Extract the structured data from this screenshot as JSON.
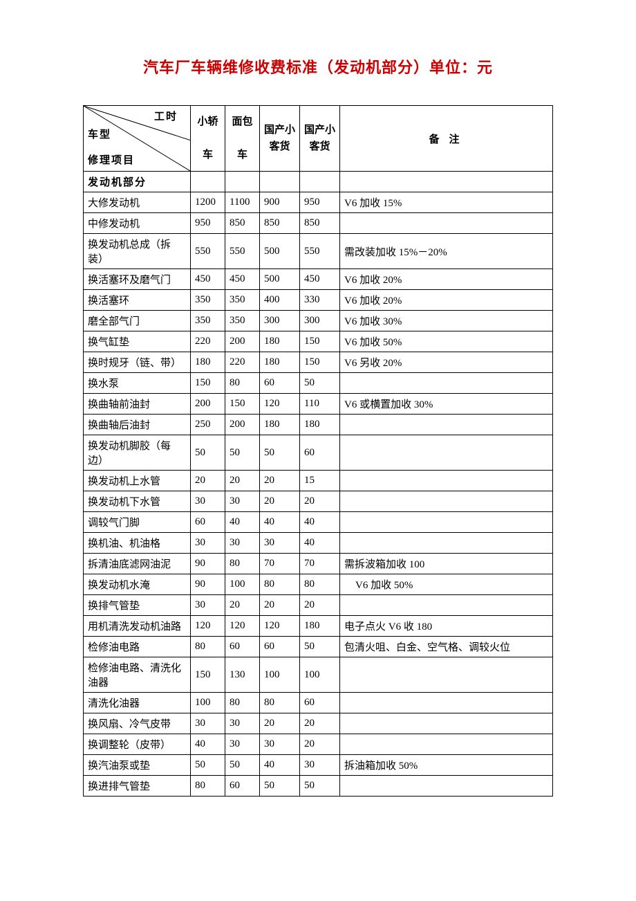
{
  "title_text": "汽车厂车辆维修收费标准（发动机部分）单位：元",
  "title_color": "#cc0000",
  "header": {
    "diag": {
      "工时": "工时",
      "车型": "车型",
      "修理项目": "修理项目"
    },
    "cols": [
      {
        "l1": "小轿",
        "l2": "车"
      },
      {
        "l1": "面包",
        "l2": "车"
      },
      {
        "l1": "国产小",
        "l2": "客货"
      },
      {
        "l1": "国产小",
        "l2": "客货"
      }
    ],
    "remark": "备注"
  },
  "section": "发动机部分",
  "rows": [
    {
      "item": "大修发动机",
      "v": [
        "1200",
        "1100",
        "900",
        "950"
      ],
      "r": "V6 加收 15%"
    },
    {
      "item": "中修发动机",
      "v": [
        "950",
        "850",
        "850",
        "850"
      ],
      "r": ""
    },
    {
      "item": "换发动机总成（拆装）",
      "v": [
        "550",
        "550",
        "500",
        "550"
      ],
      "r": "需改装加收 15%－20%"
    },
    {
      "item": "换活塞环及磨气门",
      "v": [
        "450",
        "450",
        "500",
        "450"
      ],
      "r": "V6 加收 20%"
    },
    {
      "item": "换活塞环",
      "v": [
        "350",
        "350",
        "400",
        "330"
      ],
      "r": "V6 加收 20%"
    },
    {
      "item": "磨全部气门",
      "v": [
        "350",
        "350",
        "300",
        "300"
      ],
      "r": "V6 加收 30%"
    },
    {
      "item": "换气缸垫",
      "v": [
        "220",
        "200",
        "180",
        "150"
      ],
      "r": "V6 加收 50%"
    },
    {
      "item": "换时规牙（链、带）",
      "v": [
        "180",
        "220",
        "180",
        "150"
      ],
      "r": "V6 另收 20%"
    },
    {
      "item": "换水泵",
      "v": [
        "150",
        "80",
        "60",
        "50"
      ],
      "r": ""
    },
    {
      "item": "换曲轴前油封",
      "v": [
        "200",
        "150",
        "120",
        "110"
      ],
      "r": "V6 或横置加收 30%"
    },
    {
      "item": "换曲轴后油封",
      "v": [
        "250",
        "200",
        "180",
        "180"
      ],
      "r": ""
    },
    {
      "item": "换发动机脚胶（每边）",
      "v": [
        "50",
        "50",
        "50",
        "60"
      ],
      "r": ""
    },
    {
      "item": "换发动机上水管",
      "v": [
        "20",
        "20",
        "20",
        "15"
      ],
      "r": ""
    },
    {
      "item": "换发动机下水管",
      "v": [
        "30",
        "30",
        "20",
        "20"
      ],
      "r": ""
    },
    {
      "item": "调较气门脚",
      "v": [
        "60",
        "40",
        "40",
        "40"
      ],
      "r": ""
    },
    {
      "item": "换机油、机油格",
      "v": [
        "30",
        "30",
        "30",
        "40"
      ],
      "r": ""
    },
    {
      "item": "拆清油底滤网油泥",
      "v": [
        "90",
        "80",
        "70",
        "70"
      ],
      "r": "需拆波箱加收 100"
    },
    {
      "item": "换发动机水淹",
      "v": [
        "90",
        "100",
        "80",
        "80"
      ],
      "r": "V6 加收 50%",
      "indent": true
    },
    {
      "item": "换排气管垫",
      "v": [
        "30",
        "20",
        "20",
        "20"
      ],
      "r": ""
    },
    {
      "item": "用机清洗发动机油路",
      "v": [
        "120",
        "120",
        "120",
        "180"
      ],
      "r": "电子点火 V6 收 180"
    },
    {
      "item": "检修油电路",
      "v": [
        "80",
        "60",
        "60",
        "50"
      ],
      "r": "包清火咀、白金、空气格、调较火位"
    },
    {
      "item": "检修油电路、清洗化油器",
      "v": [
        "150",
        "130",
        "100",
        "100"
      ],
      "r": ""
    },
    {
      "item": "清洗化油器",
      "v": [
        "100",
        "80",
        "80",
        "60"
      ],
      "r": ""
    },
    {
      "item": "换风扇、冷气皮带",
      "v": [
        "30",
        "30",
        "20",
        "20"
      ],
      "r": ""
    },
    {
      "item": "换调整轮（皮带）",
      "v": [
        "40",
        "30",
        "30",
        "20"
      ],
      "r": ""
    },
    {
      "item": "换汽油泵或垫",
      "v": [
        "50",
        "50",
        "40",
        "30"
      ],
      "r": "拆油箱加收 50%"
    },
    {
      "item": "换进排气管垫",
      "v": [
        "80",
        "60",
        "50",
        "50"
      ],
      "r": ""
    }
  ]
}
